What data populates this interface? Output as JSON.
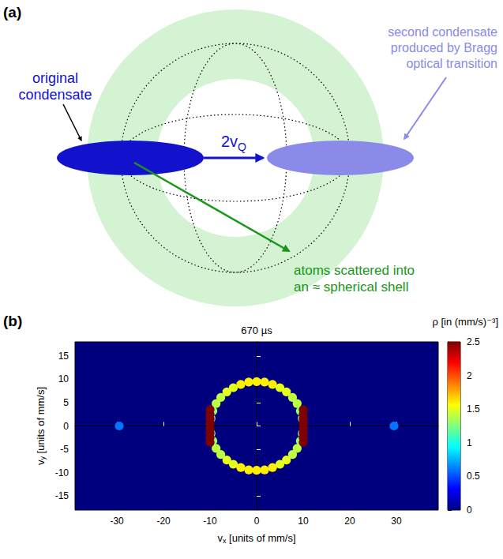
{
  "diagram": {
    "panel": "(a)",
    "original_label": [
      "original",
      "condensate"
    ],
    "second_label": [
      "second condensate",
      "produced by Bragg",
      "optical transition"
    ],
    "arrow_label": {
      "base": "2v",
      "subscript": "Q"
    },
    "shell_label": [
      "atoms scattered into",
      "an ≈ spherical shell"
    ]
  },
  "chart_data": {
    "type": "heatmap",
    "panel": "(b)",
    "title": "670 µs",
    "x_label": {
      "symbol": "v",
      "subscript": "x",
      "unit": "[units of mm/s]"
    },
    "y_label": {
      "symbol": "v",
      "subscript": "y",
      "unit": "[units of mm/s]"
    },
    "xlim": [
      -39,
      39
    ],
    "xticks": [
      -30,
      -20,
      -10,
      0,
      10,
      20,
      30
    ],
    "ylim": [
      -18,
      18
    ],
    "yticks": [
      -15,
      -10,
      -5,
      0,
      5,
      10,
      15
    ],
    "grid": false,
    "cells": [
      [
        -29.5,
        0,
        0.6
      ],
      [
        29.5,
        0,
        0.6
      ],
      [
        9.8,
        1.6,
        1.3
      ],
      [
        9.4,
        3.2,
        1.3
      ],
      [
        8.7,
        4.8,
        1.4
      ],
      [
        7.7,
        6.1,
        1.4
      ],
      [
        6.4,
        7.3,
        1.5
      ],
      [
        5,
        8.2,
        1.5
      ],
      [
        3.4,
        8.9,
        1.6
      ],
      [
        1.7,
        9.4,
        1.6
      ],
      [
        0,
        9.5,
        1.6
      ],
      [
        -1.7,
        9.4,
        1.6
      ],
      [
        -3.4,
        8.9,
        1.6
      ],
      [
        -5,
        8.2,
        1.5
      ],
      [
        -6.4,
        7.3,
        1.5
      ],
      [
        -7.7,
        6.1,
        1.4
      ],
      [
        -8.7,
        4.8,
        1.4
      ],
      [
        -9.4,
        3.2,
        1.3
      ],
      [
        -9.8,
        1.6,
        1.3
      ],
      [
        9.8,
        -1.6,
        1.3
      ],
      [
        9.4,
        -3.2,
        1.3
      ],
      [
        8.7,
        -4.8,
        1.4
      ],
      [
        7.7,
        -6.1,
        1.4
      ],
      [
        6.4,
        -7.3,
        1.5
      ],
      [
        5,
        -8.2,
        1.5
      ],
      [
        3.4,
        -8.9,
        1.6
      ],
      [
        1.7,
        -9.4,
        1.6
      ],
      [
        0,
        -9.5,
        1.6
      ],
      [
        -1.7,
        -9.4,
        1.6
      ],
      [
        -3.4,
        -8.9,
        1.6
      ],
      [
        -5,
        -8.2,
        1.5
      ],
      [
        -6.4,
        -7.3,
        1.5
      ],
      [
        -7.7,
        -6.1,
        1.4
      ],
      [
        -8.7,
        -4.8,
        1.4
      ],
      [
        -9.4,
        -3.2,
        1.3
      ],
      [
        -9.8,
        -1.6,
        1.3
      ],
      [
        -10,
        -3.5,
        2.5
      ],
      [
        -10,
        -2.5,
        2.5
      ],
      [
        -10,
        -1.5,
        2.5
      ],
      [
        -10,
        -0.5,
        2.5
      ],
      [
        -10,
        0.5,
        2.5
      ],
      [
        -10,
        1.5,
        2.5
      ],
      [
        -10,
        2.5,
        2.5
      ],
      [
        -10,
        3.5,
        2.5
      ],
      [
        10,
        -3.5,
        2.5
      ],
      [
        10,
        -2.5,
        2.5
      ],
      [
        10,
        -1.5,
        2.5
      ],
      [
        10,
        -0.5,
        2.5
      ],
      [
        10,
        0.5,
        2.5
      ],
      [
        10,
        1.5,
        2.5
      ],
      [
        10,
        2.5,
        2.5
      ],
      [
        10,
        3.5,
        2.5
      ]
    ],
    "colorbar": {
      "label": "ρ [in (mm/s)⁻³]",
      "range": [
        0,
        2.5
      ],
      "ticks": [
        0,
        0.5,
        1,
        1.5,
        2,
        2.5
      ]
    }
  }
}
